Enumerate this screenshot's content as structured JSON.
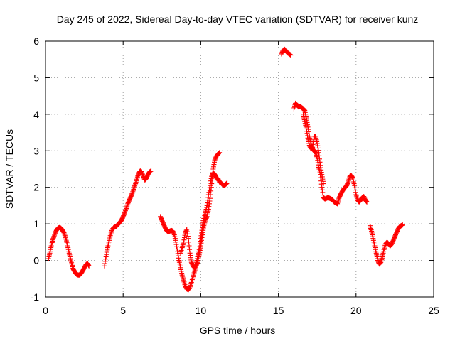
{
  "chart_data": {
    "type": "scatter",
    "title": "Day 245 of 2022, Sidereal Day-to-day VTEC variation (SDTVAR) for receiver kunz",
    "xlabel": "GPS time / hours",
    "ylabel": "SDTVAR / TECUs",
    "xlim": [
      0,
      25
    ],
    "ylim": [
      -1,
      6
    ],
    "xticks": [
      "0",
      "5",
      "10",
      "15",
      "20",
      "25"
    ],
    "yticks": [
      "-1",
      "0",
      "1",
      "2",
      "3",
      "4",
      "5",
      "6"
    ],
    "grid": true,
    "marker": "plus",
    "color": "#ff0000",
    "series": [
      {
        "name": "SDTVAR",
        "segments": [
          [
            [
              0.2,
              0.05
            ],
            [
              0.3,
              0.25
            ],
            [
              0.4,
              0.45
            ],
            [
              0.5,
              0.6
            ],
            [
              0.6,
              0.72
            ],
            [
              0.7,
              0.82
            ],
            [
              0.8,
              0.88
            ],
            [
              0.9,
              0.9
            ],
            [
              1.0,
              0.88
            ],
            [
              1.1,
              0.82
            ],
            [
              1.2,
              0.75
            ],
            [
              1.3,
              0.62
            ],
            [
              1.4,
              0.45
            ],
            [
              1.5,
              0.25
            ],
            [
              1.6,
              0.05
            ],
            [
              1.7,
              -0.1
            ],
            [
              1.8,
              -0.25
            ],
            [
              1.9,
              -0.32
            ],
            [
              2.0,
              -0.38
            ],
            [
              2.1,
              -0.4
            ],
            [
              2.2,
              -0.4
            ],
            [
              2.3,
              -0.35
            ],
            [
              2.4,
              -0.28
            ],
            [
              2.5,
              -0.2
            ],
            [
              2.6,
              -0.12
            ],
            [
              2.7,
              -0.08
            ],
            [
              2.8,
              -0.15
            ]
          ],
          [
            [
              3.8,
              -0.15
            ],
            [
              3.9,
              0.1
            ],
            [
              4.0,
              0.35
            ],
            [
              4.1,
              0.55
            ],
            [
              4.2,
              0.72
            ],
            [
              4.3,
              0.85
            ],
            [
              4.4,
              0.9
            ],
            [
              4.5,
              0.92
            ],
            [
              4.6,
              0.95
            ],
            [
              4.7,
              1.0
            ],
            [
              4.8,
              1.05
            ],
            [
              4.9,
              1.1
            ],
            [
              5.0,
              1.2
            ],
            [
              5.1,
              1.3
            ],
            [
              5.2,
              1.42
            ],
            [
              5.3,
              1.55
            ],
            [
              5.4,
              1.65
            ],
            [
              5.5,
              1.75
            ],
            [
              5.6,
              1.85
            ],
            [
              5.7,
              1.98
            ],
            [
              5.8,
              2.1
            ],
            [
              5.9,
              2.25
            ],
            [
              6.0,
              2.38
            ],
            [
              6.1,
              2.45
            ],
            [
              6.2,
              2.42
            ],
            [
              6.3,
              2.3
            ],
            [
              6.4,
              2.2
            ],
            [
              6.5,
              2.25
            ],
            [
              6.6,
              2.35
            ],
            [
              6.7,
              2.42
            ],
            [
              6.8,
              2.45
            ]
          ],
          [
            [
              7.4,
              1.2
            ],
            [
              7.5,
              1.1
            ],
            [
              7.6,
              1.0
            ],
            [
              7.7,
              0.9
            ],
            [
              7.8,
              0.82
            ],
            [
              7.9,
              0.78
            ],
            [
              8.0,
              0.8
            ],
            [
              8.1,
              0.82
            ],
            [
              8.2,
              0.8
            ],
            [
              8.3,
              0.7
            ],
            [
              8.4,
              0.5
            ],
            [
              8.5,
              0.25
            ],
            [
              8.6,
              0.0
            ],
            [
              8.7,
              -0.2
            ],
            [
              8.8,
              -0.4
            ],
            [
              8.9,
              -0.55
            ],
            [
              9.0,
              -0.7
            ],
            [
              9.1,
              -0.78
            ],
            [
              9.2,
              -0.8
            ],
            [
              9.3,
              -0.75
            ],
            [
              9.4,
              -0.6
            ],
            [
              9.5,
              -0.45
            ],
            [
              9.6,
              -0.3
            ],
            [
              9.7,
              -0.15
            ],
            [
              9.8,
              -0.05
            ],
            [
              9.9,
              0.15
            ],
            [
              10.0,
              0.4
            ],
            [
              10.1,
              0.7
            ],
            [
              10.2,
              0.95
            ],
            [
              10.3,
              1.1
            ],
            [
              10.4,
              1.2
            ],
            [
              10.5,
              1.4
            ],
            [
              10.6,
              1.7
            ],
            [
              10.7,
              2.1
            ],
            [
              10.8,
              2.5
            ],
            [
              10.9,
              2.75
            ],
            [
              11.0,
              2.85
            ],
            [
              11.1,
              2.9
            ],
            [
              11.2,
              2.95
            ]
          ],
          [
            [
              8.7,
              0.2
            ],
            [
              8.8,
              0.35
            ],
            [
              8.9,
              0.5
            ],
            [
              9.0,
              0.75
            ],
            [
              9.1,
              0.85
            ],
            [
              9.2,
              0.6
            ],
            [
              9.3,
              0.2
            ],
            [
              9.4,
              -0.05
            ],
            [
              9.5,
              -0.15
            ],
            [
              9.6,
              -0.2
            ],
            [
              9.7,
              -0.1
            ],
            [
              9.8,
              0.1
            ],
            [
              9.9,
              0.3
            ],
            [
              10.0,
              0.6
            ],
            [
              10.1,
              0.9
            ],
            [
              10.2,
              1.15
            ],
            [
              10.3,
              1.3
            ],
            [
              10.4,
              1.5
            ],
            [
              10.5,
              1.8
            ],
            [
              10.6,
              2.05
            ],
            [
              10.7,
              2.3
            ],
            [
              10.8,
              2.4
            ],
            [
              10.9,
              2.35
            ],
            [
              11.0,
              2.25
            ],
            [
              11.1,
              2.25
            ],
            [
              11.2,
              2.15
            ],
            [
              11.3,
              2.12
            ],
            [
              11.4,
              2.08
            ],
            [
              11.5,
              2.05
            ],
            [
              11.6,
              2.08
            ],
            [
              11.7,
              2.12
            ]
          ],
          [
            [
              15.2,
              5.65
            ],
            [
              15.3,
              5.75
            ],
            [
              15.4,
              5.78
            ],
            [
              15.5,
              5.72
            ],
            [
              15.6,
              5.68
            ],
            [
              15.7,
              5.65
            ],
            [
              15.8,
              5.62
            ]
          ],
          [
            [
              16.0,
              4.15
            ],
            [
              16.1,
              4.3
            ],
            [
              16.2,
              4.25
            ],
            [
              16.3,
              4.2
            ],
            [
              16.4,
              4.22
            ],
            [
              16.5,
              4.18
            ],
            [
              16.6,
              4.15
            ],
            [
              16.7,
              4.1
            ],
            [
              16.8,
              3.9
            ],
            [
              16.9,
              3.65
            ],
            [
              17.0,
              3.4
            ],
            [
              17.1,
              3.2
            ],
            [
              17.2,
              3.05
            ],
            [
              17.3,
              3.0
            ],
            [
              17.4,
              2.95
            ],
            [
              17.5,
              2.8
            ],
            [
              17.6,
              2.55
            ],
            [
              17.7,
              2.35
            ],
            [
              17.8,
              2.0
            ],
            [
              17.9,
              1.72
            ],
            [
              18.0,
              1.68
            ],
            [
              18.1,
              1.7
            ],
            [
              18.2,
              1.72
            ],
            [
              18.3,
              1.7
            ],
            [
              18.4,
              1.68
            ],
            [
              18.5,
              1.65
            ],
            [
              18.6,
              1.6
            ],
            [
              18.7,
              1.58
            ],
            [
              18.8,
              1.55
            ],
            [
              18.9,
              1.7
            ],
            [
              19.0,
              1.8
            ],
            [
              19.1,
              1.88
            ],
            [
              19.2,
              1.95
            ],
            [
              19.3,
              2.0
            ],
            [
              19.4,
              2.05
            ],
            [
              19.5,
              2.15
            ],
            [
              19.6,
              2.3
            ],
            [
              19.7,
              2.32
            ],
            [
              19.8,
              2.25
            ],
            [
              19.9,
              2.05
            ],
            [
              20.0,
              1.8
            ],
            [
              20.1,
              1.65
            ],
            [
              20.2,
              1.6
            ],
            [
              20.3,
              1.65
            ],
            [
              20.4,
              1.72
            ],
            [
              20.5,
              1.75
            ],
            [
              20.6,
              1.65
            ],
            [
              20.7,
              1.6
            ]
          ],
          [
            [
              16.6,
              4.0
            ],
            [
              16.7,
              3.8
            ],
            [
              16.8,
              3.6
            ],
            [
              16.9,
              3.35
            ],
            [
              17.0,
              3.15
            ],
            [
              17.1,
              3.05
            ],
            [
              17.2,
              3.1
            ],
            [
              17.3,
              3.4
            ],
            [
              17.4,
              3.4
            ],
            [
              17.5,
              3.2
            ],
            [
              17.6,
              2.95
            ],
            [
              17.7,
              2.6
            ],
            [
              17.8,
              2.35
            ],
            [
              17.9,
              2.1
            ]
          ],
          [
            [
              20.9,
              0.95
            ],
            [
              21.0,
              0.8
            ],
            [
              21.1,
              0.6
            ],
            [
              21.2,
              0.4
            ],
            [
              21.3,
              0.2
            ],
            [
              21.4,
              0.0
            ],
            [
              21.5,
              -0.1
            ],
            [
              21.6,
              -0.05
            ],
            [
              21.7,
              0.1
            ],
            [
              21.8,
              0.3
            ],
            [
              21.9,
              0.45
            ],
            [
              22.0,
              0.5
            ],
            [
              22.1,
              0.45
            ],
            [
              22.2,
              0.4
            ],
            [
              22.3,
              0.45
            ],
            [
              22.4,
              0.55
            ],
            [
              22.5,
              0.65
            ],
            [
              22.6,
              0.75
            ],
            [
              22.7,
              0.85
            ],
            [
              22.8,
              0.92
            ],
            [
              22.9,
              0.95
            ],
            [
              23.0,
              0.97
            ]
          ]
        ]
      }
    ]
  }
}
